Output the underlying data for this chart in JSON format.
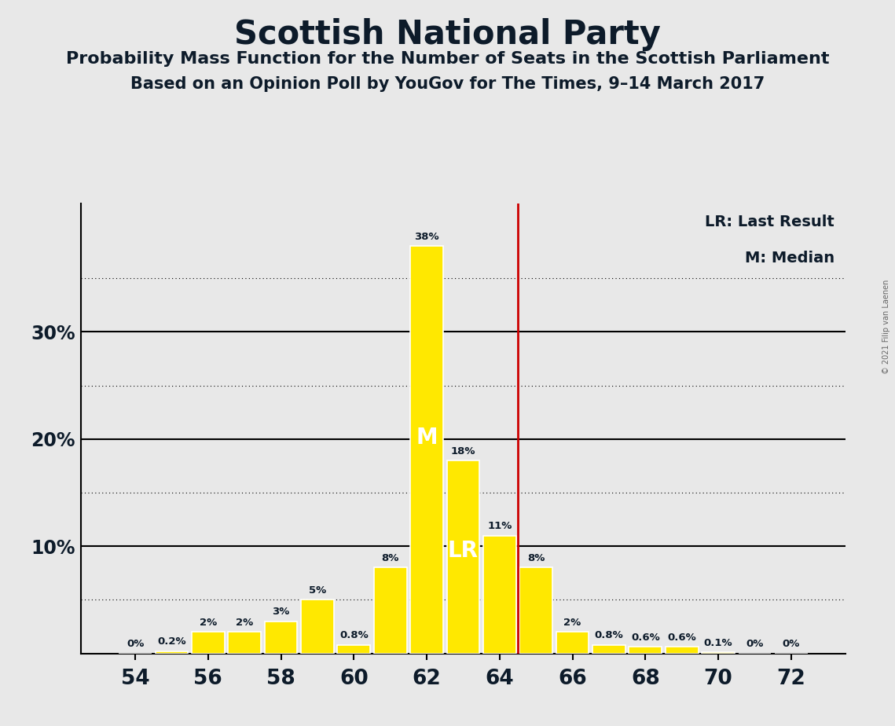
{
  "title": "Scottish National Party",
  "subtitle1": "Probability Mass Function for the Number of Seats in the Scottish Parliament",
  "subtitle2": "Based on an Opinion Poll by YouGov for The Times, 9–14 March 2017",
  "copyright": "© 2021 Filip van Laenen",
  "seats": [
    54,
    55,
    56,
    57,
    58,
    59,
    60,
    61,
    62,
    63,
    64,
    65,
    66,
    67,
    68,
    69,
    70,
    71,
    72
  ],
  "probabilities": [
    0.0,
    0.2,
    2.0,
    2.0,
    3.0,
    5.0,
    0.8,
    8.0,
    38.0,
    18.0,
    11.0,
    8.0,
    2.0,
    0.8,
    0.6,
    0.6,
    0.1,
    0.0,
    0.0
  ],
  "bar_color": "#FFE800",
  "bar_edge_color": "#FFFFFF",
  "last_result": 64.5,
  "median_seat": 62,
  "median_label": "M",
  "last_result_label": "LR",
  "last_result_line_color": "#CC0000",
  "background_color": "#E8E8E8",
  "title_color": "#0D1B2A",
  "xlim": [
    52.5,
    73.5
  ],
  "ylim": [
    0,
    42
  ],
  "xticks": [
    54,
    56,
    58,
    60,
    62,
    64,
    66,
    68,
    70,
    72
  ],
  "solid_gridlines": [
    10,
    20,
    30
  ],
  "dotted_gridlines": [
    5,
    15,
    25,
    35
  ],
  "legend_text1": "LR: Last Result",
  "legend_text2": "M: Median"
}
